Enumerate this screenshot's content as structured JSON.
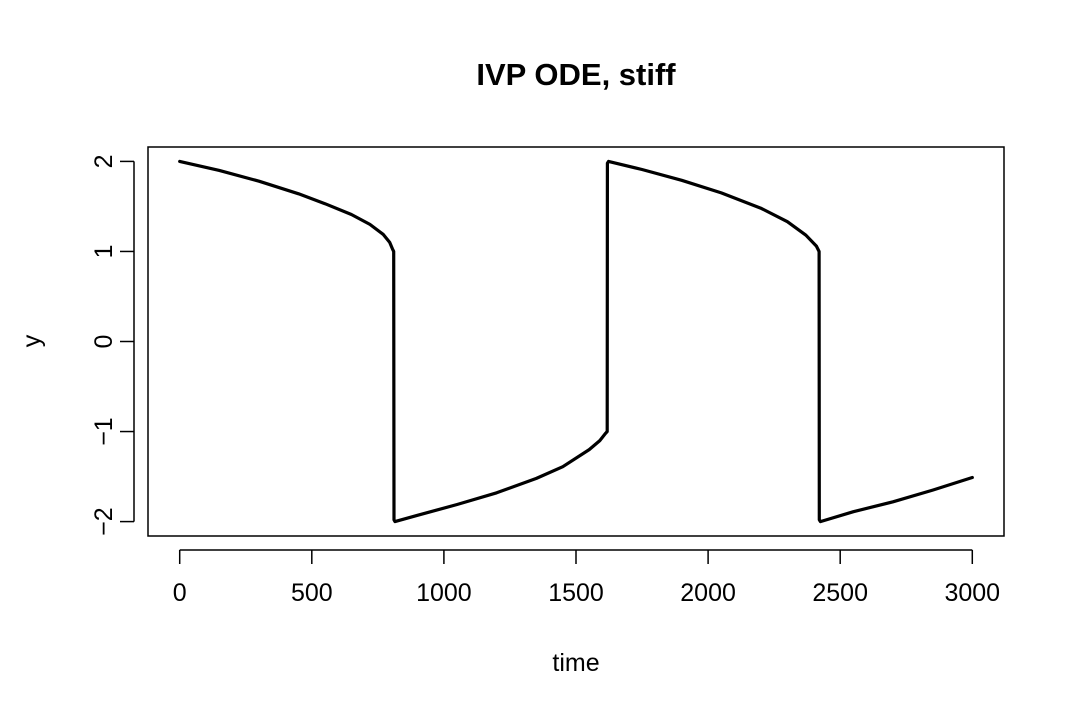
{
  "chart_data": {
    "type": "line",
    "title": "IVP ODE, stiff",
    "xlabel": "time",
    "ylabel": "y",
    "xlim": [
      -120,
      3120
    ],
    "ylim": [
      -2.16,
      2.16
    ],
    "grid": false,
    "x_ticks": [
      0,
      500,
      1000,
      1500,
      2000,
      2500,
      3000
    ],
    "x_tick_labels": [
      "0",
      "500",
      "1000",
      "1500",
      "2000",
      "2500",
      "3000"
    ],
    "y_ticks": [
      -2,
      -1,
      0,
      1,
      2
    ],
    "y_tick_labels": [
      "−2",
      "−1",
      "0",
      "1",
      "2"
    ],
    "series": [
      {
        "color": "#000000",
        "x": [
          0,
          150,
          300,
          450,
          550,
          650,
          720,
          770,
          795,
          805,
          810,
          811,
          815,
          900,
          1050,
          1200,
          1350,
          1450,
          1550,
          1590,
          1612,
          1618,
          1619,
          1623,
          1750,
          1900,
          2050,
          2200,
          2300,
          2370,
          2410,
          2420,
          2421,
          2425,
          2550,
          2700,
          2850,
          3000
        ],
        "y": [
          2.0,
          1.9,
          1.78,
          1.64,
          1.53,
          1.41,
          1.3,
          1.19,
          1.1,
          1.03,
          1.0,
          -1.98,
          -2.0,
          -1.93,
          -1.81,
          -1.68,
          -1.52,
          -1.39,
          -1.2,
          -1.1,
          -1.02,
          -1.0,
          1.98,
          2.0,
          1.91,
          1.79,
          1.65,
          1.48,
          1.33,
          1.18,
          1.06,
          1.0,
          -1.98,
          -2.0,
          -1.89,
          -1.78,
          -1.65,
          -1.51
        ]
      }
    ]
  }
}
